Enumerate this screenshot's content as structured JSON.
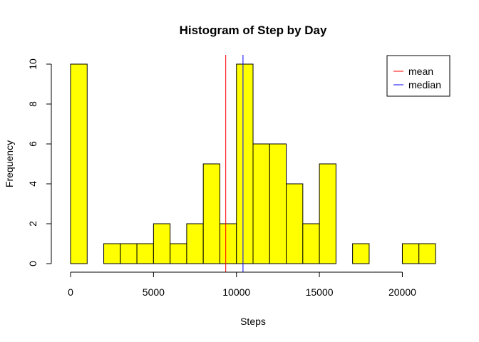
{
  "chart_data": {
    "type": "histogram",
    "title": "Histogram of Step by Day",
    "xlabel": "Steps",
    "ylabel": "Frequency",
    "xlim": [
      0,
      22000
    ],
    "ylim": [
      0,
      10
    ],
    "bin_width": 1000,
    "bins": [
      {
        "start": 0,
        "end": 1000,
        "count": 10
      },
      {
        "start": 2000,
        "end": 3000,
        "count": 1
      },
      {
        "start": 3000,
        "end": 4000,
        "count": 1
      },
      {
        "start": 4000,
        "end": 5000,
        "count": 1
      },
      {
        "start": 5000,
        "end": 6000,
        "count": 2
      },
      {
        "start": 6000,
        "end": 7000,
        "count": 1
      },
      {
        "start": 7000,
        "end": 8000,
        "count": 2
      },
      {
        "start": 8000,
        "end": 9000,
        "count": 5
      },
      {
        "start": 9000,
        "end": 10000,
        "count": 2
      },
      {
        "start": 10000,
        "end": 11000,
        "count": 10
      },
      {
        "start": 11000,
        "end": 12000,
        "count": 6
      },
      {
        "start": 12000,
        "end": 13000,
        "count": 6
      },
      {
        "start": 13000,
        "end": 14000,
        "count": 4
      },
      {
        "start": 14000,
        "end": 15000,
        "count": 2
      },
      {
        "start": 15000,
        "end": 16000,
        "count": 5
      },
      {
        "start": 17000,
        "end": 18000,
        "count": 1
      },
      {
        "start": 20000,
        "end": 21000,
        "count": 1
      },
      {
        "start": 21000,
        "end": 22000,
        "count": 1
      }
    ],
    "bar_color": "#ffff00",
    "x_ticks": [
      0,
      5000,
      10000,
      15000,
      20000
    ],
    "y_ticks": [
      0,
      2,
      4,
      6,
      8,
      10
    ],
    "reference_lines": [
      {
        "name": "mean",
        "value": 9354,
        "color": "#ff0000"
      },
      {
        "name": "median",
        "value": 10395,
        "color": "#0000ff"
      }
    ],
    "legend": {
      "position": "top-right"
    },
    "grid": false
  }
}
